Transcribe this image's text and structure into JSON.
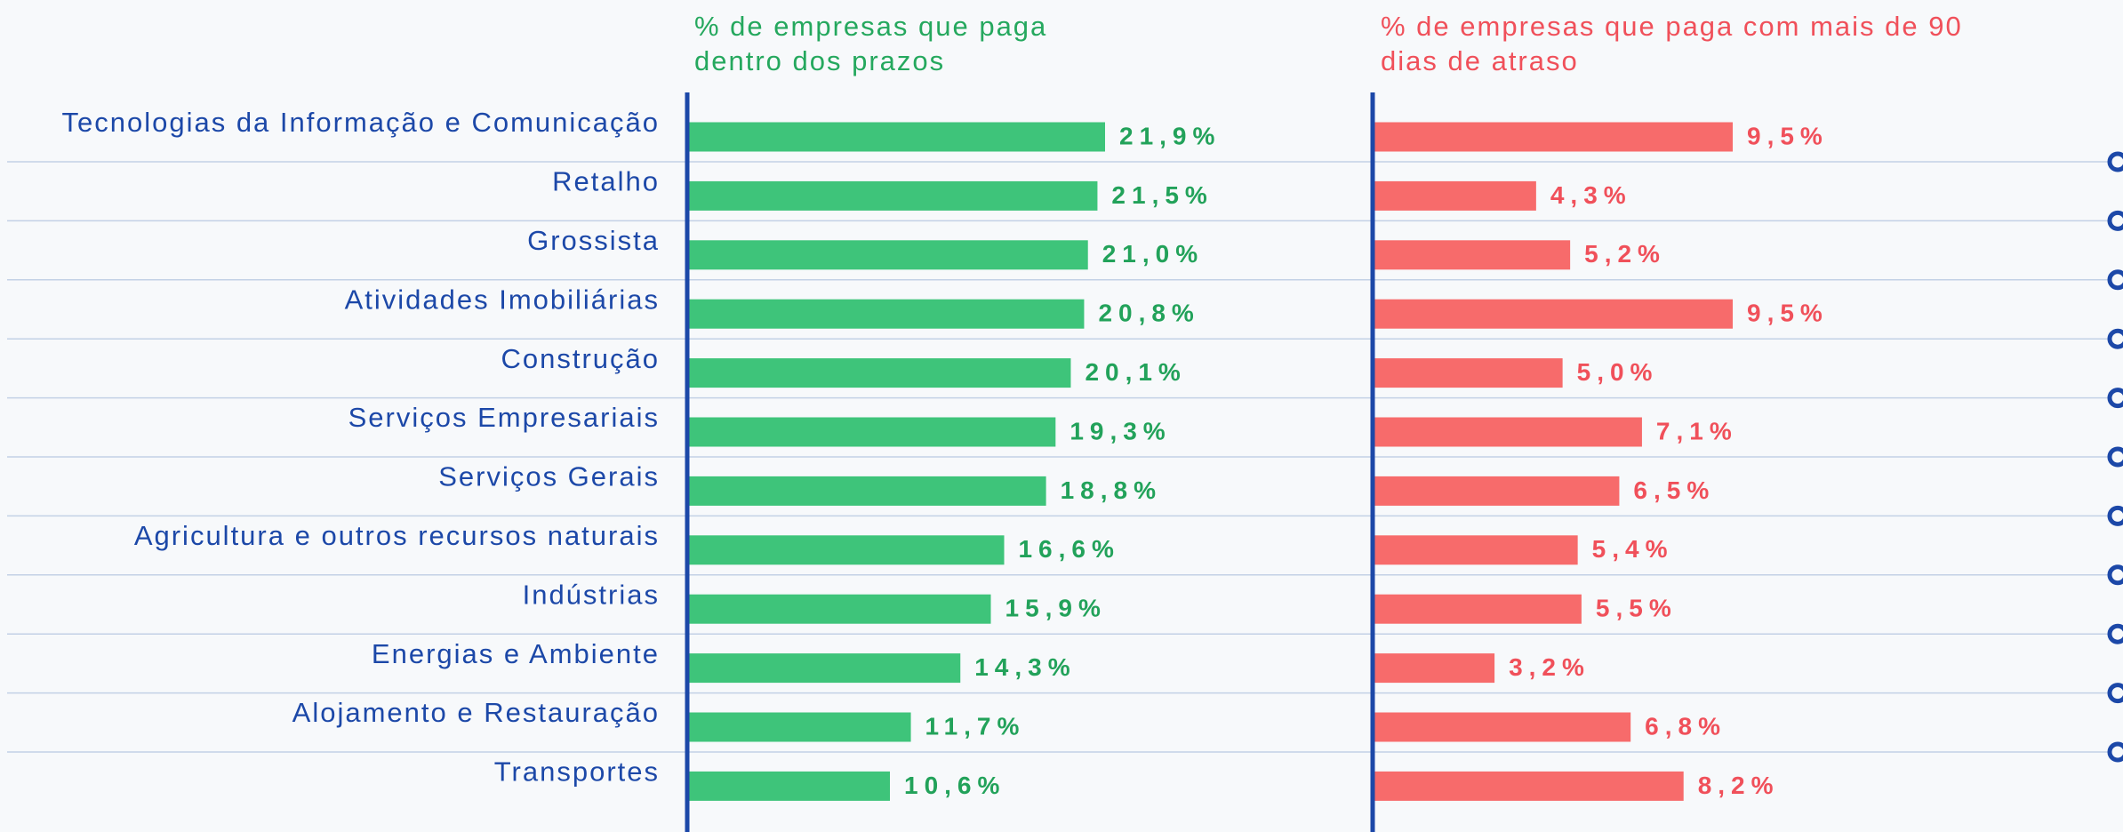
{
  "chart_data": {
    "type": "bar",
    "orientation": "horizontal",
    "categories": [
      "Tecnologias da Informação e Comunicação",
      "Retalho",
      "Grossista",
      "Atividades Imobiliárias",
      "Construção",
      "Serviços Empresariais",
      "Serviços Gerais",
      "Agricultura e outros recursos naturais",
      "Indústrias",
      "Energias e Ambiente",
      "Alojamento e Restauração",
      "Transportes"
    ],
    "series": [
      {
        "name": "% de empresas que paga dentro dos prazos",
        "color": "#3ec47a",
        "values": [
          21.9,
          21.5,
          21.0,
          20.8,
          20.1,
          19.3,
          18.8,
          16.6,
          15.9,
          14.3,
          11.7,
          10.6
        ],
        "value_labels": [
          "21,9%",
          "21,5%",
          "21,0%",
          "20,8%",
          "20,1%",
          "19,3%",
          "18,8%",
          "16,6%",
          "15,9%",
          "14,3%",
          "11,7%",
          "10,6%"
        ]
      },
      {
        "name": "% de empresas que paga com mais de 90 dias de atraso",
        "color": "#f76b6b",
        "values": [
          9.5,
          4.3,
          5.2,
          9.5,
          5.0,
          7.1,
          6.5,
          5.4,
          5.5,
          3.2,
          6.8,
          8.2
        ],
        "value_labels": [
          "9,5%",
          "4,3%",
          "5,2%",
          "9,5%",
          "5,0%",
          "7,1%",
          "6,5%",
          "5,4%",
          "5,5%",
          "3,2%",
          "6,8%",
          "8,2%"
        ]
      }
    ]
  }
}
